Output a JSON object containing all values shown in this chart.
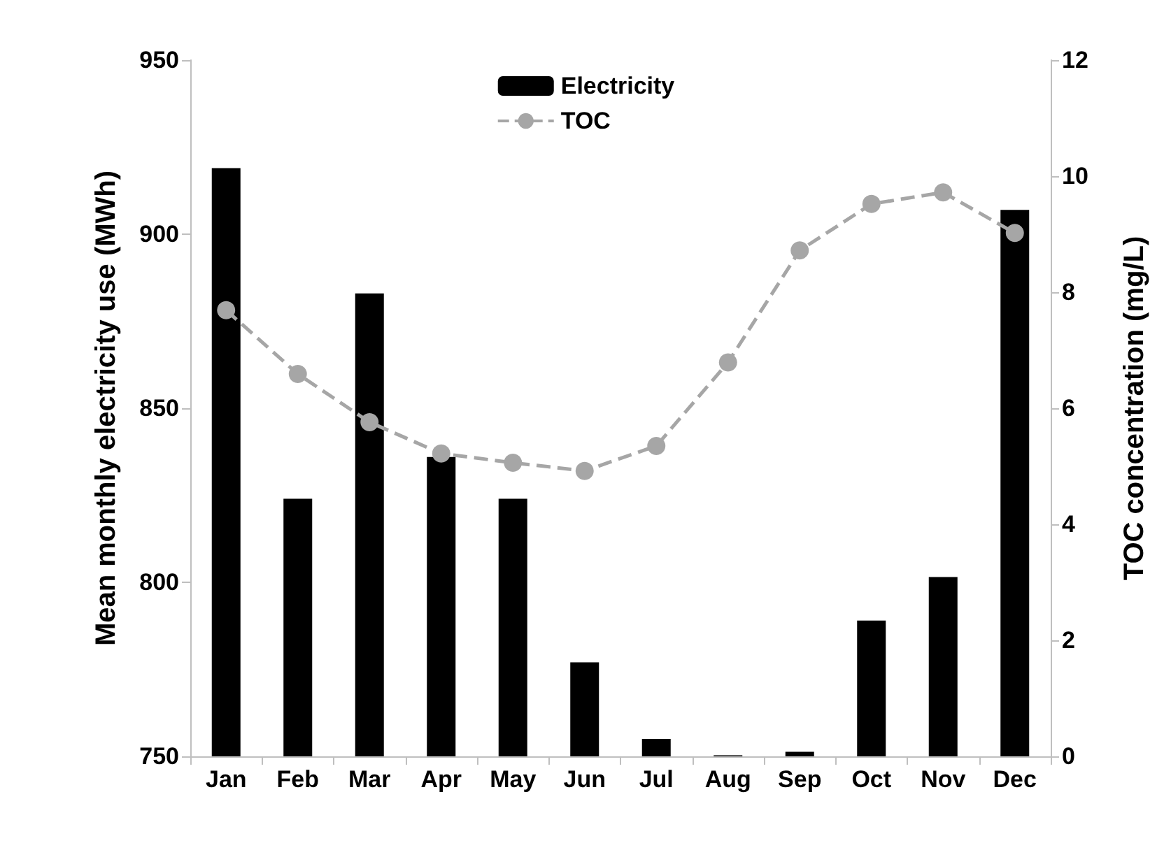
{
  "chart_data": {
    "type": "bar",
    "ylabel": "Mean monthly electricity use (MWh)",
    "y2label": "TOC concentration (mg/L)",
    "categories": [
      "Jan",
      "Feb",
      "Mar",
      "Apr",
      "May",
      "Jun",
      "Jul",
      "Aug",
      "Sep",
      "Oct",
      "Nov",
      "Dec"
    ],
    "series": [
      {
        "name": "Electricity",
        "color": "#000000",
        "values": [
          919,
          824,
          883,
          836,
          824,
          777,
          755,
          750.3,
          751.3,
          789,
          801.5,
          907
        ]
      },
      {
        "name": "TOC",
        "type": "line",
        "axis": "y2",
        "color": "#a6a6a6",
        "marker": "circle",
        "line_style": "dashed",
        "values": [
          7.69,
          6.59,
          5.76,
          5.22,
          5.06,
          4.92,
          5.35,
          6.79,
          8.72,
          9.52,
          9.72,
          9.02
        ]
      }
    ],
    "ylim": [
      750,
      950
    ],
    "yticks": [
      750,
      800,
      850,
      900,
      950
    ],
    "y2lim": [
      0,
      12
    ],
    "y2ticks": [
      0,
      2,
      4,
      6,
      8,
      10,
      12
    ],
    "grid": false,
    "legend": "top"
  }
}
